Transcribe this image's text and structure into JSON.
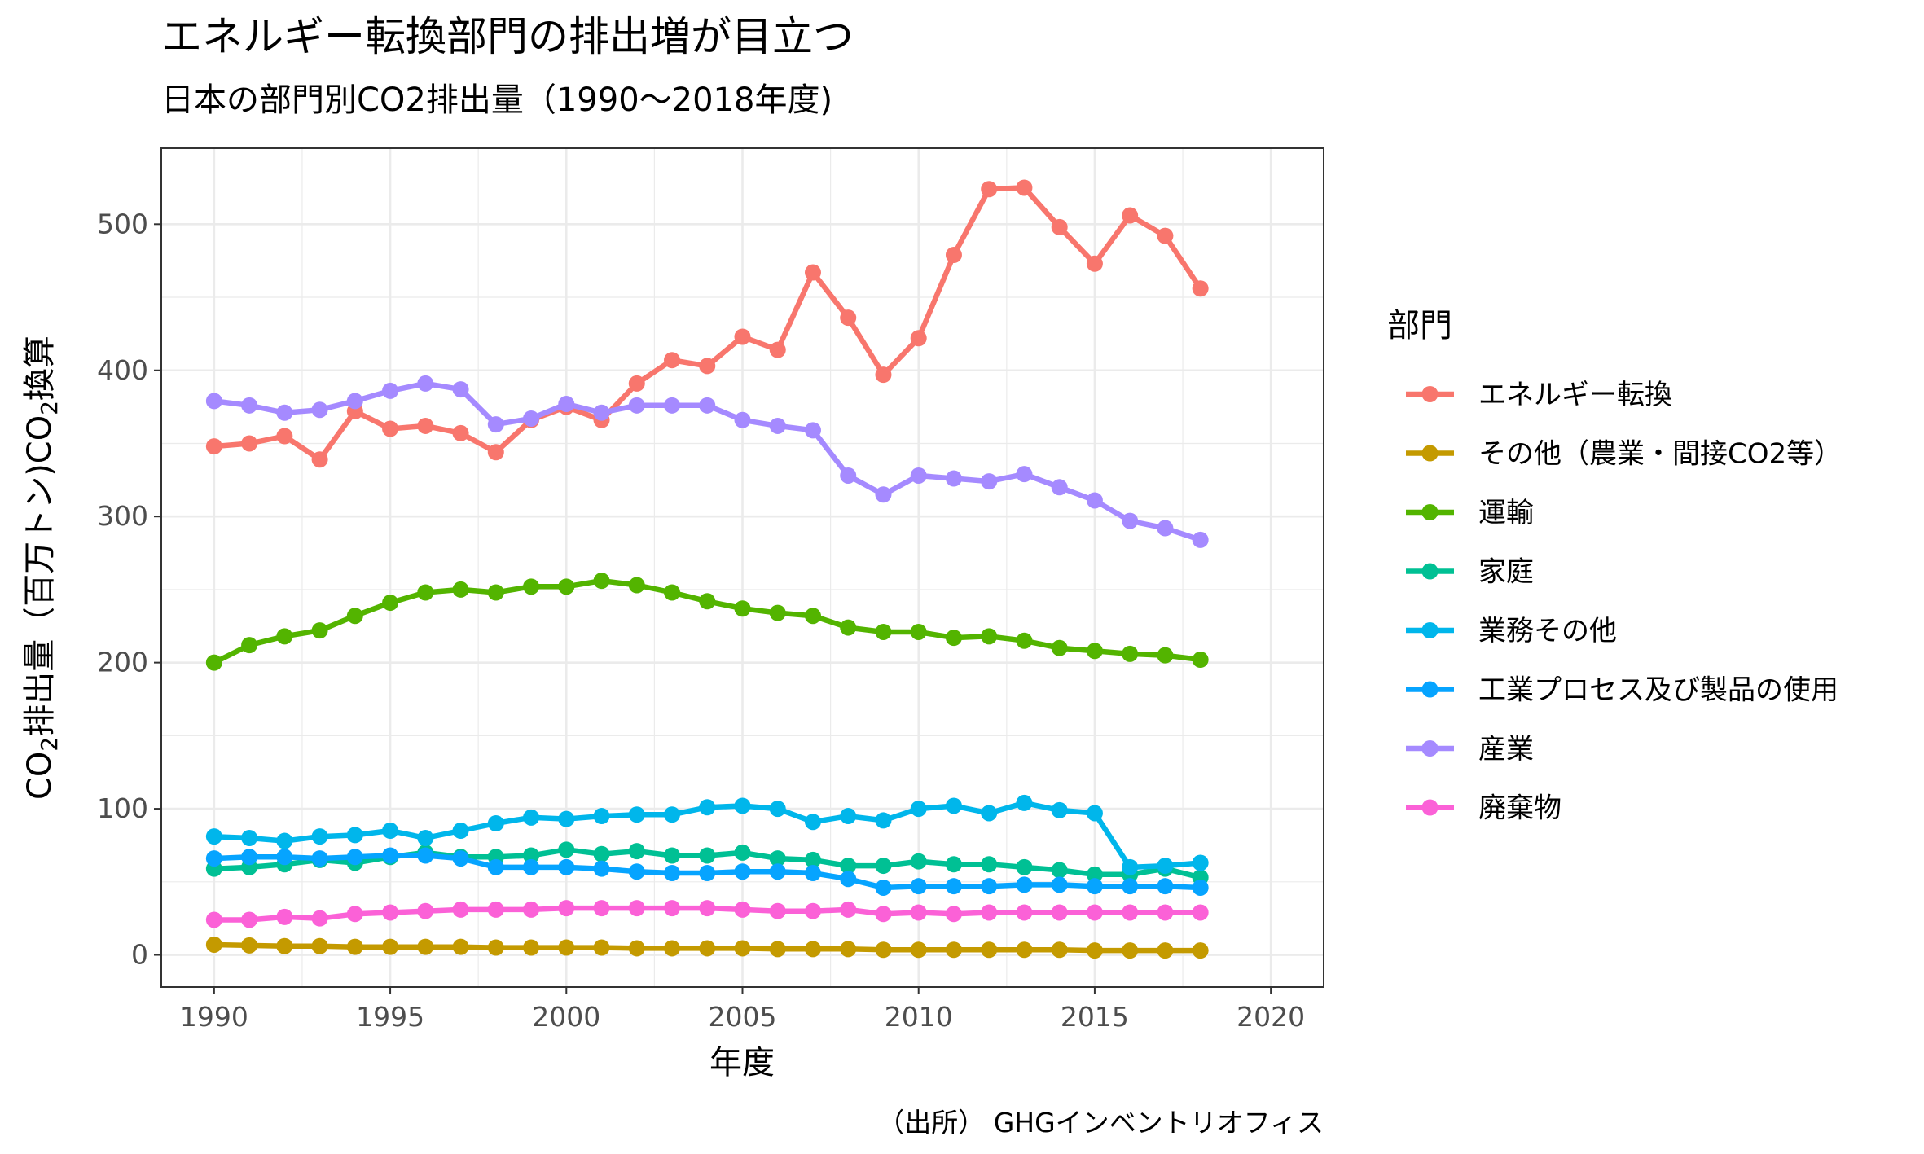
{
  "chart_data": {
    "type": "line",
    "title": "エネルギー転換部門の排出増が目立つ",
    "subtitle": "日本の部門別CO2排出量（1990〜2018年度)",
    "xlabel": "年度",
    "ylabel_parts": [
      "CO",
      "2",
      "排出量（百万トン)CO",
      "2",
      "換算"
    ],
    "caption": "（出所） GHGインベントリオフィス",
    "xlim": [
      1988.5,
      2021.5
    ],
    "ylim": [
      -22,
      552
    ],
    "x_ticks": [
      1990,
      1995,
      2000,
      2005,
      2010,
      2015,
      2020
    ],
    "y_ticks": [
      0,
      100,
      200,
      300,
      400,
      500
    ],
    "grid": true,
    "legend_title": "部門",
    "legend_position": "right",
    "x": [
      1990,
      1991,
      1992,
      1993,
      1994,
      1995,
      1996,
      1997,
      1998,
      1999,
      2000,
      2001,
      2002,
      2003,
      2004,
      2005,
      2006,
      2007,
      2008,
      2009,
      2010,
      2011,
      2012,
      2013,
      2014,
      2015,
      2016,
      2017,
      2018
    ],
    "series": [
      {
        "name": "エネルギー転換",
        "color": "#F8766D",
        "values": [
          348,
          350,
          355,
          339,
          372,
          360,
          362,
          357,
          344,
          366,
          375,
          366,
          391,
          407,
          403,
          423,
          414,
          467,
          436,
          397,
          422,
          479,
          524,
          525,
          498,
          473,
          506,
          492,
          456
        ]
      },
      {
        "name": "その他（農業・間接CO2等）",
        "color": "#C49A00",
        "values": [
          7,
          6.5,
          6,
          6,
          5.5,
          5.5,
          5.5,
          5.5,
          5,
          5,
          5,
          5,
          4.5,
          4.5,
          4.5,
          4.5,
          4,
          4,
          4,
          3.5,
          3.5,
          3.5,
          3.5,
          3.5,
          3.5,
          3,
          3,
          3,
          3
        ]
      },
      {
        "name": "運輸",
        "color": "#53B400",
        "values": [
          200,
          212,
          218,
          222,
          232,
          241,
          248,
          250,
          248,
          252,
          252,
          256,
          253,
          248,
          242,
          237,
          234,
          232,
          224,
          221,
          221,
          217,
          218,
          215,
          210,
          208,
          206,
          205,
          202
        ]
      },
      {
        "name": "家庭",
        "color": "#00C094",
        "values": [
          59,
          60,
          62,
          65,
          63,
          67,
          70,
          67,
          67,
          68,
          72,
          69,
          71,
          68,
          68,
          70,
          66,
          65,
          61,
          61,
          64,
          62,
          62,
          60,
          58,
          55,
          55,
          59,
          53
        ]
      },
      {
        "name": "業務その他",
        "color": "#00B6EB",
        "values": [
          81,
          80,
          78,
          81,
          82,
          85,
          80,
          85,
          90,
          94,
          93,
          95,
          96,
          96,
          101,
          102,
          100,
          91,
          95,
          92,
          100,
          102,
          97,
          104,
          99,
          97,
          60,
          61,
          63
        ]
      },
      {
        "name": "工業プロセス及び製品の使用",
        "color": "#06A4FF",
        "values": [
          66,
          67,
          67,
          66,
          67,
          68,
          68,
          66,
          60,
          60,
          60,
          59,
          57,
          56,
          56,
          57,
          57,
          56,
          52,
          46,
          47,
          47,
          47,
          48,
          48,
          47,
          47,
          47,
          46
        ]
      },
      {
        "name": "産業",
        "color": "#A58AFF",
        "values": [
          379,
          376,
          371,
          373,
          379,
          386,
          391,
          387,
          363,
          367,
          377,
          371,
          376,
          376,
          376,
          366,
          362,
          359,
          328,
          315,
          328,
          326,
          324,
          329,
          320,
          311,
          297,
          292,
          284
        ]
      },
      {
        "name": "廃棄物",
        "color": "#FB61D7",
        "values": [
          24,
          24,
          26,
          25,
          28,
          29,
          30,
          31,
          31,
          31,
          32,
          32,
          32,
          32,
          32,
          31,
          30,
          30,
          31,
          28,
          29,
          28,
          29,
          29,
          29,
          29,
          29,
          29,
          29
        ]
      }
    ]
  }
}
